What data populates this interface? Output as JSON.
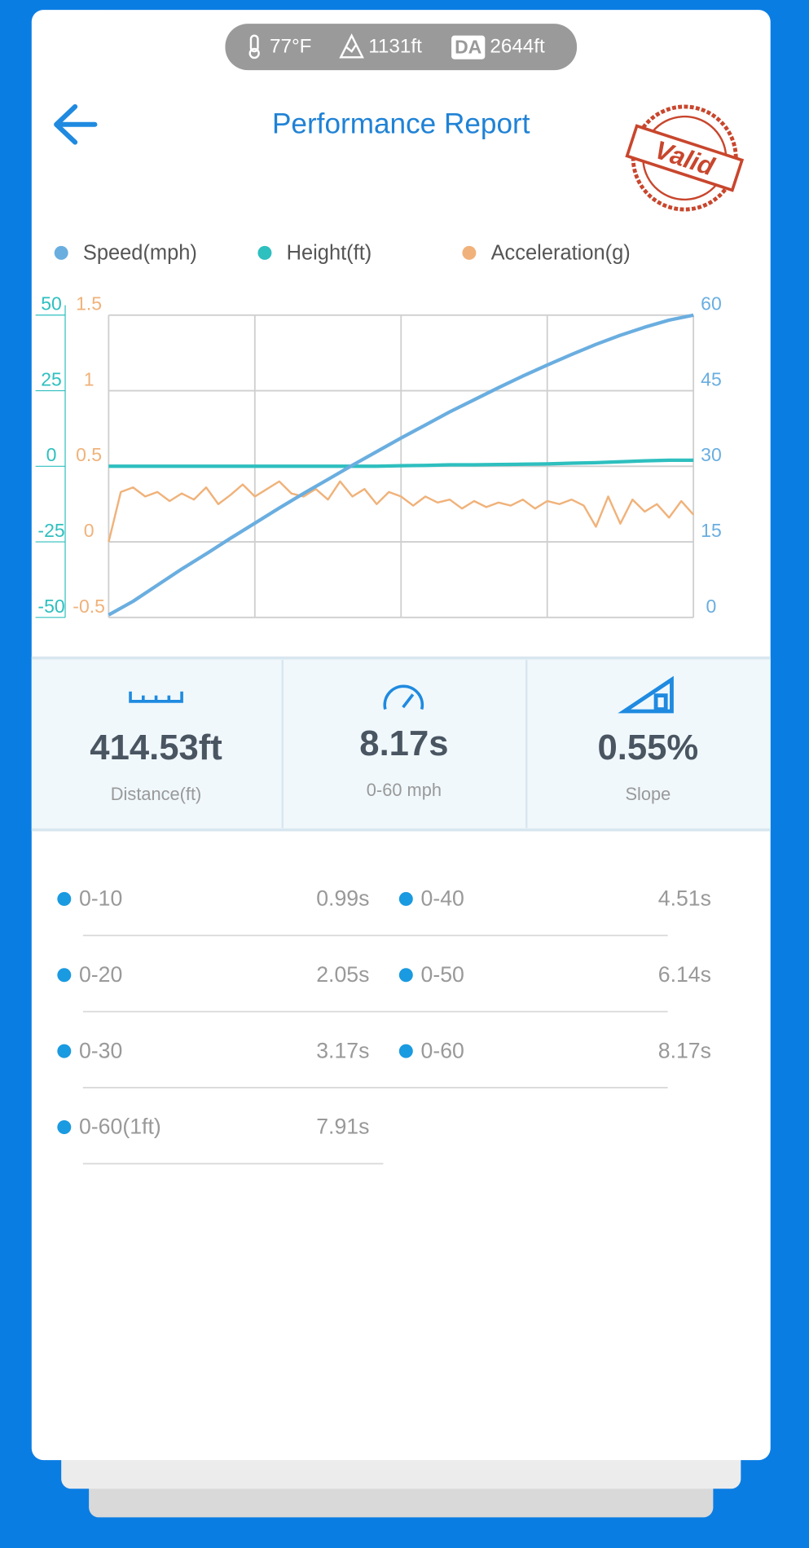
{
  "status_bar": {
    "temperature": "77°F",
    "altitude": "1131ft",
    "da_badge": "DA",
    "density_altitude": "2644ft"
  },
  "header": {
    "title": "Performance Report",
    "stamp": "Valid"
  },
  "chart_data": {
    "type": "line",
    "ylim": [
      -50,
      50
    ],
    "yticks": [
      -50,
      -25,
      0,
      25,
      50
    ],
    "y2lim": [
      0,
      60
    ],
    "y2ticks": [
      0,
      15,
      30,
      45,
      60
    ],
    "y3lim": [
      -0.5,
      1.5
    ],
    "y3ticks": [
      -0.5,
      0,
      0.5,
      1,
      1.5
    ],
    "grid": true,
    "series": [
      {
        "name": "Speed(mph)",
        "color": "#6aaee0",
        "axis": "y2",
        "values": [
          0.5,
          3.2,
          6.4,
          9.6,
          12.6,
          15.7,
          18.7,
          21.7,
          24.6,
          27.4,
          30.2,
          32.9,
          35.6,
          38.2,
          40.8,
          43.2,
          45.6,
          47.9,
          50.1,
          52.2,
          54.2,
          56.0,
          57.6,
          59.0,
          60
        ]
      },
      {
        "name": "Height(ft)",
        "color": "#2ebfbf",
        "axis": "y",
        "values": [
          0,
          0,
          0,
          0,
          0,
          0,
          0,
          0,
          0,
          0,
          0,
          0,
          0.2,
          0.3,
          0.5,
          0.5,
          0.6,
          0.7,
          0.8,
          1,
          1.2,
          1.5,
          1.8,
          2,
          2
        ]
      },
      {
        "name": "Acceleration(g)",
        "color": "#f0b27a",
        "axis": "y3",
        "values": [
          0,
          0.33,
          0.36,
          0.3,
          0.33,
          0.27,
          0.32,
          0.28,
          0.36,
          0.25,
          0.31,
          0.38,
          0.3,
          0.35,
          0.4,
          0.32,
          0.3,
          0.35,
          0.28,
          0.4,
          0.3,
          0.35,
          0.25,
          0.33,
          0.3,
          0.24,
          0.3,
          0.26,
          0.28,
          0.22,
          0.27,
          0.23,
          0.26,
          0.24,
          0.28,
          0.22,
          0.27,
          0.25,
          0.28,
          0.24,
          0.1,
          0.3,
          0.12,
          0.28,
          0.2,
          0.25,
          0.16,
          0.27,
          0.18
        ]
      }
    ]
  },
  "stats": [
    {
      "value": "414.53ft",
      "label": "Distance(ft)"
    },
    {
      "value": "8.17s",
      "label": "0-60 mph"
    },
    {
      "value": "0.55%",
      "label": "Slope"
    }
  ],
  "splits": {
    "left": [
      {
        "label": "0-10",
        "time": "0.99s"
      },
      {
        "label": "0-20",
        "time": "2.05s"
      },
      {
        "label": "0-30",
        "time": "3.17s"
      },
      {
        "label": "0-60(1ft)",
        "time": "7.91s"
      }
    ],
    "right": [
      {
        "label": "0-40",
        "time": "4.51s"
      },
      {
        "label": "0-50",
        "time": "6.14s"
      },
      {
        "label": "0-60",
        "time": "8.17s"
      }
    ]
  }
}
